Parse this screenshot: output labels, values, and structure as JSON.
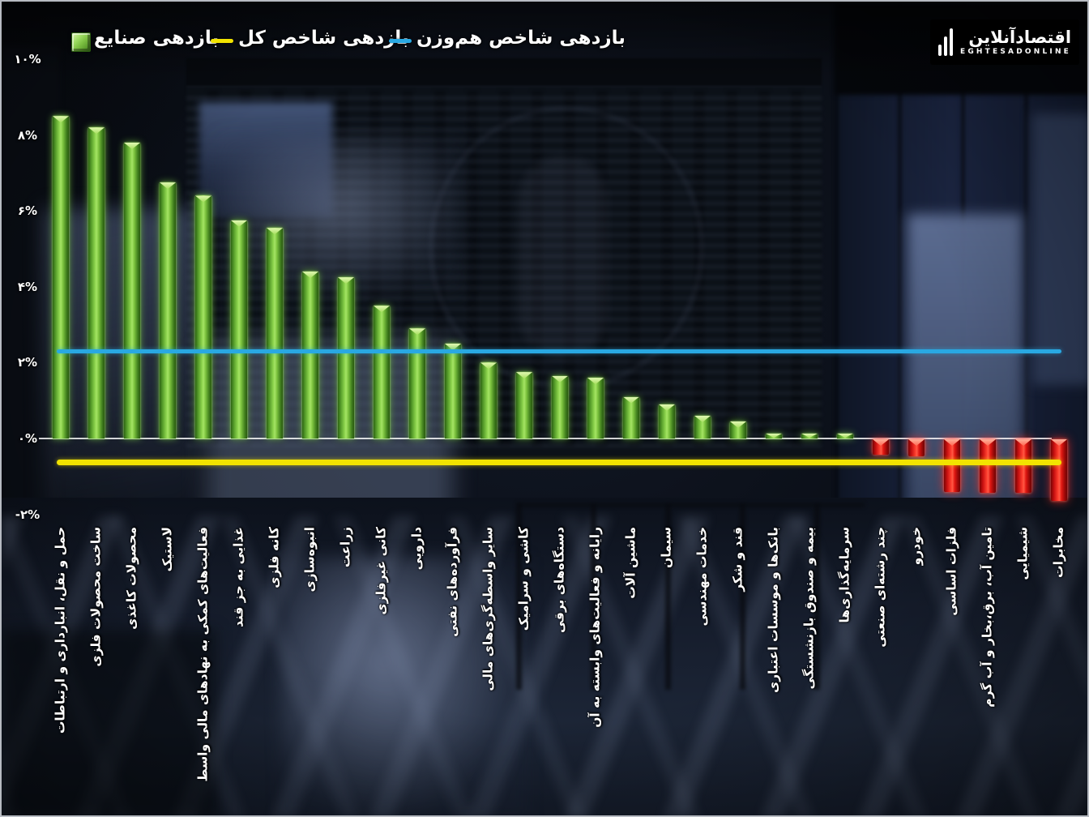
{
  "legend": [
    {
      "label": "بازدهی صنایع",
      "marker": "green-square",
      "color": "#7dc142"
    },
    {
      "label": "بازدهی شاخص کل",
      "marker": "yellow-line",
      "color": "#f2e300"
    },
    {
      "label": "بازدهی شاخص هم‌وزن",
      "marker": "blue-line",
      "color": "#29a8e2"
    }
  ],
  "logo": {
    "fa": "اقتصادآنلاین",
    "en": "EGHTESADONLINE"
  },
  "chart_data": {
    "type": "bar",
    "title": "",
    "series_label": "بازدهی صنایع",
    "categories": [
      "حمل و نقل، انبارداری و ارتباطات",
      "ساخت محصولات فلزی",
      "محصولات کاغذی",
      "لاستیک",
      "فعالیت‌های کمکی به نهادهای مالی واسط",
      "غذایی به جز قند",
      "کانه فلزی",
      "انبوه‌سازی",
      "زراعت",
      "کانی غیرفلزی",
      "دارویی",
      "فرآورده‌های نفتی",
      "سایر واسطه‌گری‌های مالی",
      "کاشی و سرامیک",
      "دستگاه‌های برقی",
      "رایانه و فعالیت‌های وابسته به آن",
      "ماشین آلات",
      "سیمان",
      "خدمات مهندسی",
      "قند و شکر",
      "بانک‌ها و موسسات اعتباری",
      "بیمه و صندوق بازنشستگی",
      "سرمایه‌گذاری‌ها",
      "چند رشته‌ای صنعتی",
      "خودرو",
      "فلزات اساسی",
      "تامین آب، برق،بخار و آب گرم",
      "شیمیایی",
      "مخابرات"
    ],
    "values": [
      8.5,
      8.2,
      7.8,
      6.75,
      6.4,
      5.75,
      5.55,
      4.4,
      4.25,
      3.5,
      2.9,
      2.5,
      2.0,
      1.75,
      1.65,
      1.6,
      1.1,
      0.9,
      0.6,
      0.45,
      0.13,
      0.13,
      0.13,
      -0.4,
      -0.45,
      -1.38,
      -1.42,
      -1.42,
      -1.62
    ],
    "unit": "%",
    "reference_lines": [
      {
        "label": "بازدهی شاخص هم‌وزن",
        "value": 2.3,
        "color": "#29a8e2"
      },
      {
        "label": "بازدهی شاخص کل",
        "value": -0.62,
        "color": "#f2e300"
      }
    ],
    "yticks": [
      "۱۰%",
      "۸%",
      "۶%",
      "۴%",
      "۲%",
      "۰%",
      "-۲%"
    ],
    "ytick_values": [
      10,
      8,
      6,
      4,
      2,
      0,
      -2
    ],
    "ylim": [
      -2.8,
      10.5
    ],
    "grid": false,
    "legend_position": "top",
    "bar_colors": {
      "positive": "#7dc142",
      "negative": "#ee1111"
    },
    "zero_axis_color": "#ffffff"
  }
}
